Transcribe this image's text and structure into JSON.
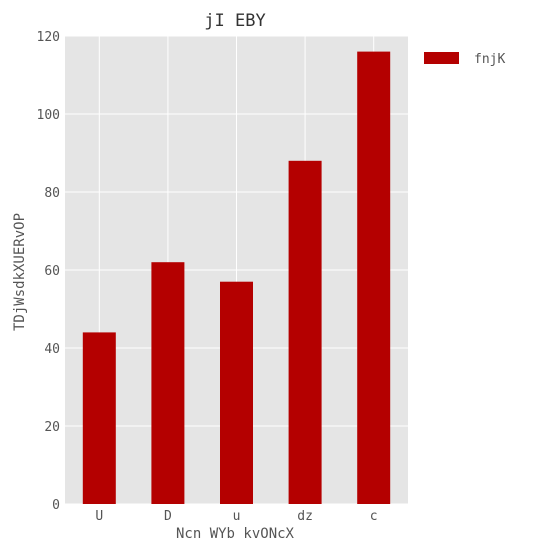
{
  "chart_data": {
    "type": "bar",
    "title": "jI EBY",
    "xlabel": "Ncn WYb kvONcX",
    "ylabel": "TDjWsdkXUERvOP",
    "categories": [
      "U",
      "D",
      "u",
      "dz",
      "c"
    ],
    "series": [
      {
        "name": "fnjK",
        "values": [
          44,
          62,
          57,
          88,
          116
        ],
        "color": "#b40000"
      }
    ],
    "ylim": [
      0,
      120
    ],
    "yticks": [
      0,
      20,
      40,
      60,
      80,
      100,
      120
    ],
    "grid": true,
    "legend_position": "top-right",
    "background_color": "#e5e5e5",
    "grid_color": "#ffffff"
  }
}
